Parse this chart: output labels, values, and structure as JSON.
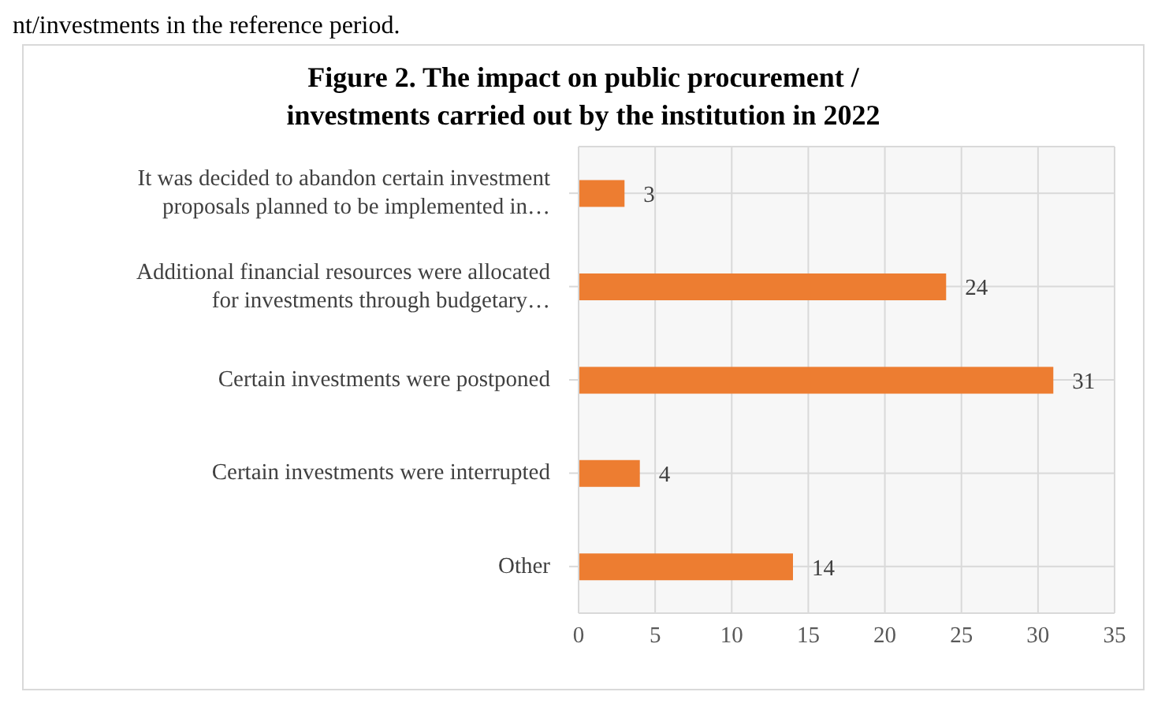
{
  "chart_data": {
    "type": "bar",
    "orientation": "horizontal",
    "title": "Figure 2. The impact on public procurement / investments carried out by the institution in 2022",
    "annotations": [
      "nt/investments in the reference period."
    ],
    "categories": [
      "It was decided to abandon certain investment proposals planned to be implemented in…",
      "Additional financial resources were allocated for investments through budgetary…",
      "Certain investments were postponed",
      "Certain investments were interrupted",
      "Other"
    ],
    "values": [
      3,
      24,
      31,
      4,
      14
    ],
    "color": "#ed7d31",
    "data_labels": true,
    "xlim": [
      0,
      35
    ],
    "xticks": [
      0,
      5,
      10,
      15,
      20,
      25,
      30,
      35
    ],
    "grid": true
  }
}
